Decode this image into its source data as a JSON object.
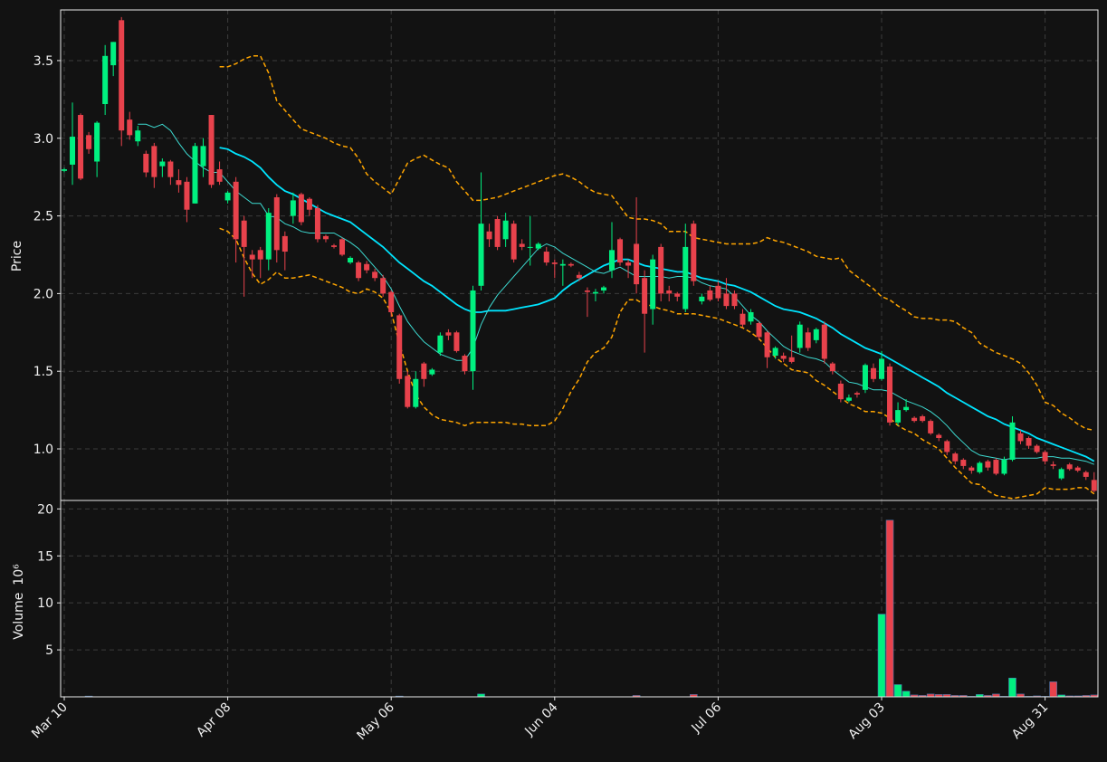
{
  "chart_data": {
    "type": "candlestick",
    "ylabel": "Price",
    "volume_label": "Volume",
    "volume_scale_label": "10⁶",
    "up_color": "#00f080",
    "down_color": "#e8424c",
    "grid": true,
    "categories": [
      "Mar 10",
      null,
      null,
      null,
      null,
      null,
      null,
      null,
      null,
      null,
      null,
      null,
      null,
      null,
      null,
      null,
      null,
      null,
      null,
      null,
      "Apr 08",
      null,
      null,
      null,
      null,
      null,
      null,
      null,
      null,
      null,
      null,
      null,
      null,
      null,
      null,
      null,
      null,
      null,
      null,
      null,
      "May 06",
      null,
      null,
      null,
      null,
      null,
      null,
      null,
      null,
      null,
      null,
      null,
      null,
      null,
      null,
      null,
      null,
      null,
      null,
      null,
      "Jun 04",
      null,
      null,
      null,
      null,
      null,
      null,
      null,
      null,
      null,
      null,
      null,
      null,
      null,
      null,
      null,
      null,
      null,
      null,
      null,
      "Jul 06",
      null,
      null,
      null,
      null,
      null,
      null,
      null,
      null,
      null,
      null,
      null,
      null,
      null,
      null,
      null,
      null,
      null,
      null,
      null,
      "Aug 03",
      null,
      null,
      null,
      null,
      null,
      null,
      null,
      null,
      null,
      null,
      null,
      null,
      null,
      null,
      null,
      null,
      null,
      null,
      null,
      "Aug 31",
      null,
      null,
      null,
      null,
      null,
      null
    ],
    "open": [
      2.79,
      2.83,
      3.15,
      3.02,
      2.85,
      3.22,
      3.47,
      3.76,
      3.12,
      2.98,
      2.9,
      2.95,
      2.82,
      2.85,
      2.73,
      2.72,
      2.58,
      2.82,
      3.15,
      2.8,
      2.6,
      2.72,
      2.47,
      2.25,
      2.28,
      2.22,
      2.62,
      2.37,
      2.5,
      2.64,
      2.61,
      2.55,
      2.37,
      2.31,
      2.35,
      2.2,
      2.2,
      2.19,
      2.14,
      2.1,
      2.01,
      1.86,
      1.47,
      1.27,
      1.55,
      1.48,
      1.62,
      1.75,
      1.75,
      1.6,
      1.5,
      2.05,
      2.4,
      2.48,
      2.35,
      2.45,
      2.32,
      2.3,
      2.29,
      2.27,
      2.2,
      2.18,
      2.19,
      2.12,
      2.02,
      2.0,
      2.02,
      2.15,
      2.35,
      2.2,
      2.32,
      2.1,
      1.9,
      2.3,
      2.02,
      2.0,
      1.9,
      2.45,
      1.95,
      2.02,
      2.05,
      2.0,
      2.0,
      1.87,
      1.82,
      1.81,
      1.75,
      1.6,
      1.6,
      1.59,
      1.65,
      1.75,
      1.7,
      1.8,
      1.55,
      1.42,
      1.31,
      1.36,
      1.38,
      1.52,
      1.45,
      1.53,
      1.17,
      1.25,
      1.2,
      1.21,
      1.18,
      1.09,
      1.05,
      0.97,
      0.93,
      0.88,
      0.85,
      0.92,
      0.93,
      0.84,
      0.93,
      1.1,
      1.07,
      1.02,
      0.98,
      0.9,
      0.81,
      0.9,
      0.88,
      0.85,
      0.8
    ],
    "high": [
      2.81,
      3.23,
      3.16,
      3.04,
      3.11,
      3.6,
      3.62,
      3.78,
      3.17,
      3.08,
      2.92,
      2.97,
      2.87,
      2.86,
      2.8,
      2.75,
      2.97,
      3.0,
      3.15,
      2.85,
      2.66,
      2.75,
      2.5,
      2.28,
      2.3,
      2.55,
      2.64,
      2.4,
      2.65,
      2.65,
      2.62,
      2.57,
      2.38,
      2.32,
      2.36,
      2.24,
      2.21,
      2.21,
      2.16,
      2.12,
      2.02,
      1.87,
      1.5,
      1.5,
      1.56,
      1.52,
      1.75,
      1.77,
      1.76,
      1.61,
      2.05,
      2.78,
      2.45,
      2.5,
      2.52,
      2.47,
      2.35,
      2.5,
      2.33,
      2.3,
      2.22,
      2.22,
      2.2,
      2.14,
      2.04,
      2.03,
      2.05,
      2.46,
      2.36,
      2.22,
      2.62,
      2.15,
      2.25,
      2.32,
      2.05,
      2.01,
      2.45,
      2.47,
      2.0,
      2.05,
      2.08,
      2.1,
      2.02,
      1.9,
      1.9,
      1.82,
      1.76,
      1.66,
      1.62,
      1.73,
      1.82,
      1.78,
      1.78,
      1.82,
      1.56,
      1.44,
      1.35,
      1.37,
      1.55,
      1.55,
      1.63,
      1.55,
      1.3,
      1.32,
      1.21,
      1.22,
      1.19,
      1.1,
      1.06,
      0.98,
      0.94,
      0.89,
      0.92,
      0.93,
      0.94,
      0.95,
      1.21,
      1.12,
      1.08,
      1.03,
      0.99,
      0.92,
      0.88,
      0.91,
      0.89,
      0.86,
      0.85
    ],
    "low": [
      2.78,
      2.7,
      2.73,
      2.9,
      2.75,
      3.15,
      3.4,
      2.95,
      2.99,
      2.95,
      2.75,
      2.68,
      2.75,
      2.7,
      2.65,
      2.46,
      2.58,
      2.75,
      2.68,
      2.7,
      2.58,
      2.2,
      1.98,
      2.1,
      2.1,
      2.15,
      2.2,
      2.15,
      2.45,
      2.44,
      2.5,
      2.33,
      2.33,
      2.29,
      2.24,
      2.19,
      2.08,
      2.13,
      2.08,
      1.98,
      1.85,
      1.42,
      1.26,
      1.26,
      1.4,
      1.47,
      1.6,
      1.7,
      1.62,
      1.48,
      1.38,
      2.02,
      2.3,
      2.28,
      2.3,
      2.2,
      2.28,
      2.18,
      2.28,
      2.18,
      2.1,
      2.05,
      2.17,
      2.08,
      1.85,
      1.95,
      2.0,
      2.1,
      2.18,
      2.1,
      2.0,
      1.62,
      1.8,
      1.95,
      1.95,
      1.95,
      1.88,
      2.05,
      1.93,
      1.95,
      1.95,
      1.9,
      1.9,
      1.78,
      1.8,
      1.7,
      1.52,
      1.58,
      1.56,
      1.55,
      1.62,
      1.63,
      1.68,
      1.55,
      1.48,
      1.3,
      1.3,
      1.33,
      1.36,
      1.43,
      1.44,
      1.15,
      1.15,
      1.24,
      1.17,
      1.17,
      1.09,
      1.05,
      0.96,
      0.9,
      0.87,
      0.84,
      0.84,
      0.86,
      0.83,
      0.83,
      0.92,
      1.03,
      1.0,
      0.97,
      0.9,
      0.87,
      0.8,
      0.86,
      0.85,
      0.8,
      0.72
    ],
    "close": [
      2.8,
      3.01,
      2.74,
      2.93,
      3.1,
      3.53,
      3.62,
      3.05,
      3.02,
      3.05,
      2.78,
      2.75,
      2.85,
      2.75,
      2.7,
      2.54,
      2.95,
      2.95,
      2.7,
      2.72,
      2.65,
      2.35,
      2.3,
      2.22,
      2.22,
      2.52,
      2.28,
      2.27,
      2.6,
      2.46,
      2.54,
      2.35,
      2.35,
      2.3,
      2.25,
      2.23,
      2.1,
      2.15,
      2.1,
      2.0,
      1.88,
      1.45,
      1.27,
      1.45,
      1.45,
      1.51,
      1.73,
      1.73,
      1.63,
      1.5,
      2.02,
      2.45,
      2.35,
      2.3,
      2.47,
      2.22,
      2.3,
      2.3,
      2.32,
      2.2,
      2.19,
      2.19,
      2.18,
      2.1,
      2.01,
      2.01,
      2.04,
      2.28,
      2.2,
      2.18,
      2.06,
      1.87,
      2.22,
      2.0,
      2.0,
      1.98,
      2.3,
      2.08,
      1.98,
      1.96,
      1.97,
      1.92,
      1.92,
      1.8,
      1.88,
      1.72,
      1.59,
      1.65,
      1.58,
      1.56,
      1.8,
      1.65,
      1.77,
      1.58,
      1.5,
      1.32,
      1.33,
      1.35,
      1.54,
      1.45,
      1.58,
      1.17,
      1.25,
      1.27,
      1.18,
      1.18,
      1.1,
      1.07,
      0.98,
      0.92,
      0.89,
      0.86,
      0.91,
      0.88,
      0.84,
      0.93,
      1.17,
      1.05,
      1.02,
      0.98,
      0.92,
      0.89,
      0.87,
      0.87,
      0.86,
      0.82,
      0.73
    ],
    "volume": [
      0.02,
      0.02,
      0.02,
      0.08,
      0.02,
      0.02,
      0.02,
      0.02,
      0.02,
      0.02,
      0.02,
      0.02,
      0.02,
      0.02,
      0.02,
      0.02,
      0.02,
      0.02,
      0.02,
      0.02,
      0.02,
      0.02,
      0.02,
      0.02,
      0.02,
      0.02,
      0.02,
      0.02,
      0.02,
      0.02,
      0.02,
      0.02,
      0.02,
      0.02,
      0.02,
      0.02,
      0.02,
      0.02,
      0.02,
      0.02,
      0.02,
      0.08,
      0.02,
      0.02,
      0.02,
      0.02,
      0.02,
      0.02,
      0.02,
      0.02,
      0.02,
      0.3,
      0.02,
      0.02,
      0.02,
      0.02,
      0.02,
      0.02,
      0.02,
      0.02,
      0.02,
      0.02,
      0.02,
      0.02,
      0.02,
      0.02,
      0.02,
      0.02,
      0.02,
      0.02,
      0.15,
      0.02,
      0.02,
      0.02,
      0.02,
      0.02,
      0.02,
      0.25,
      0.02,
      0.02,
      0.02,
      0.02,
      0.02,
      0.02,
      0.02,
      0.02,
      0.02,
      0.02,
      0.02,
      0.02,
      0.02,
      0.02,
      0.02,
      0.02,
      0.02,
      0.02,
      0.02,
      0.02,
      0.02,
      0.02,
      8.8,
      18.8,
      1.3,
      0.6,
      0.2,
      0.15,
      0.3,
      0.25,
      0.25,
      0.15,
      0.15,
      0.05,
      0.25,
      0.15,
      0.3,
      0.05,
      2.0,
      0.3,
      0.05,
      0.1,
      0.05,
      1.6,
      0.2,
      0.1,
      0.1,
      0.15,
      0.2
    ],
    "overlays": [
      {
        "color": "#00e5ff",
        "width": 1.8,
        "dash": false,
        "values": [
          null,
          null,
          null,
          null,
          null,
          null,
          null,
          null,
          null,
          null,
          null,
          null,
          null,
          null,
          null,
          null,
          null,
          null,
          null,
          2.94,
          2.93,
          2.9,
          2.88,
          2.85,
          2.81,
          2.75,
          2.7,
          2.66,
          2.64,
          2.61,
          2.58,
          2.55,
          2.52,
          2.5,
          2.48,
          2.46,
          2.42,
          2.38,
          2.34,
          2.3,
          2.25,
          2.2,
          2.16,
          2.12,
          2.08,
          2.05,
          2.01,
          1.97,
          1.93,
          1.9,
          1.88,
          1.88,
          1.89,
          1.89,
          1.89,
          1.9,
          1.91,
          1.92,
          1.93,
          1.95,
          1.97,
          2.02,
          2.06,
          2.09,
          2.12,
          2.15,
          2.18,
          2.2,
          2.22,
          2.22,
          2.2,
          2.18,
          2.17,
          2.16,
          2.15,
          2.14,
          2.14,
          2.12,
          2.1,
          2.09,
          2.08,
          2.06,
          2.05,
          2.03,
          2.01,
          1.98,
          1.95,
          1.92,
          1.9,
          1.89,
          1.88,
          1.86,
          1.84,
          1.81,
          1.78,
          1.74,
          1.71,
          1.68,
          1.65,
          1.63,
          1.61,
          1.58,
          1.55,
          1.52,
          1.49,
          1.46,
          1.43,
          1.4,
          1.36,
          1.33,
          1.3,
          1.27,
          1.24,
          1.21,
          1.19,
          1.16,
          1.14,
          1.12,
          1.1,
          1.07,
          1.05,
          1.03,
          1.01,
          0.99,
          0.97,
          0.95,
          0.92
        ]
      },
      {
        "color": "#3dd9d0",
        "width": 1,
        "dash": false,
        "values": [
          null,
          null,
          null,
          null,
          null,
          null,
          null,
          null,
          null,
          3.09,
          3.09,
          3.07,
          3.09,
          3.05,
          2.97,
          2.9,
          2.85,
          2.81,
          2.78,
          2.78,
          2.72,
          2.66,
          2.62,
          2.58,
          2.58,
          2.5,
          2.49,
          2.45,
          2.43,
          2.4,
          2.39,
          2.39,
          2.39,
          2.39,
          2.36,
          2.33,
          2.29,
          2.23,
          2.17,
          2.11,
          2.03,
          1.92,
          1.82,
          1.75,
          1.69,
          1.65,
          1.61,
          1.59,
          1.57,
          1.57,
          1.65,
          1.8,
          1.91,
          1.99,
          2.05,
          2.11,
          2.17,
          2.23,
          2.29,
          2.32,
          2.3,
          2.26,
          2.23,
          2.2,
          2.17,
          2.14,
          2.13,
          2.15,
          2.17,
          2.14,
          2.11,
          2.11,
          2.11,
          2.11,
          2.1,
          2.11,
          2.11,
          2.1,
          2.07,
          2.05,
          2.04,
          2.03,
          1.98,
          1.92,
          1.86,
          1.82,
          1.76,
          1.71,
          1.66,
          1.63,
          1.61,
          1.59,
          1.58,
          1.56,
          1.51,
          1.47,
          1.43,
          1.42,
          1.4,
          1.38,
          1.38,
          1.37,
          1.34,
          1.31,
          1.29,
          1.27,
          1.24,
          1.2,
          1.15,
          1.09,
          1.04,
          0.99,
          0.96,
          0.95,
          0.94,
          0.93,
          0.94,
          0.94,
          0.94,
          0.94,
          0.95,
          0.95,
          0.94,
          0.94,
          0.93,
          0.92,
          0.9
        ]
      },
      {
        "color": "#ffa500",
        "width": 1.5,
        "dash": true,
        "values": [
          null,
          null,
          null,
          null,
          null,
          null,
          null,
          null,
          null,
          null,
          null,
          null,
          null,
          null,
          null,
          null,
          null,
          null,
          null,
          3.46,
          3.46,
          3.48,
          3.51,
          3.53,
          3.53,
          3.42,
          3.24,
          3.18,
          3.12,
          3.06,
          3.04,
          3.02,
          3.0,
          2.97,
          2.95,
          2.94,
          2.87,
          2.77,
          2.72,
          2.68,
          2.64,
          2.74,
          2.84,
          2.87,
          2.89,
          2.86,
          2.83,
          2.81,
          2.72,
          2.66,
          2.6,
          2.6,
          2.61,
          2.62,
          2.64,
          2.66,
          2.68,
          2.7,
          2.72,
          2.74,
          2.76,
          2.77,
          2.75,
          2.72,
          2.68,
          2.65,
          2.64,
          2.63,
          2.56,
          2.49,
          2.48,
          2.48,
          2.47,
          2.45,
          2.4,
          2.4,
          2.4,
          2.36,
          2.35,
          2.34,
          2.33,
          2.32,
          2.32,
          2.32,
          2.32,
          2.33,
          2.36,
          2.34,
          2.33,
          2.31,
          2.29,
          2.27,
          2.24,
          2.23,
          2.22,
          2.23,
          2.15,
          2.11,
          2.07,
          2.03,
          1.98,
          1.96,
          1.92,
          1.89,
          1.85,
          1.84,
          1.84,
          1.83,
          1.83,
          1.82,
          1.78,
          1.75,
          1.68,
          1.65,
          1.62,
          1.6,
          1.58,
          1.55,
          1.49,
          1.41,
          1.3,
          1.28,
          1.23,
          1.2,
          1.16,
          1.13,
          1.12
        ]
      },
      {
        "color": "#ffa500",
        "width": 1.5,
        "dash": true,
        "values": [
          null,
          null,
          null,
          null,
          null,
          null,
          null,
          null,
          null,
          null,
          null,
          null,
          null,
          null,
          null,
          null,
          null,
          null,
          null,
          2.42,
          2.4,
          2.35,
          2.23,
          2.13,
          2.06,
          2.09,
          2.14,
          2.1,
          2.1,
          2.11,
          2.12,
          2.1,
          2.08,
          2.06,
          2.04,
          2.01,
          2.0,
          2.03,
          2.01,
          1.97,
          1.88,
          1.68,
          1.5,
          1.35,
          1.27,
          1.22,
          1.19,
          1.18,
          1.17,
          1.15,
          1.17,
          1.17,
          1.17,
          1.17,
          1.17,
          1.16,
          1.16,
          1.15,
          1.15,
          1.15,
          1.18,
          1.26,
          1.37,
          1.45,
          1.56,
          1.62,
          1.65,
          1.72,
          1.88,
          1.96,
          1.96,
          1.93,
          1.92,
          1.9,
          1.89,
          1.87,
          1.87,
          1.87,
          1.86,
          1.85,
          1.84,
          1.82,
          1.8,
          1.78,
          1.75,
          1.71,
          1.65,
          1.59,
          1.55,
          1.51,
          1.5,
          1.49,
          1.44,
          1.41,
          1.37,
          1.33,
          1.29,
          1.27,
          1.24,
          1.24,
          1.23,
          1.2,
          1.15,
          1.12,
          1.1,
          1.06,
          1.03,
          1.0,
          0.94,
          0.88,
          0.83,
          0.78,
          0.77,
          0.73,
          0.7,
          0.69,
          0.68,
          0.69,
          0.7,
          0.71,
          0.75,
          0.74,
          0.74,
          0.74,
          0.75,
          0.75,
          0.71
        ]
      }
    ],
    "ylim": [
      0.668,
      3.826
    ],
    "yticks": [
      {
        "value": 1.0,
        "label": "1.0"
      },
      1.5,
      {
        "value": 2.0,
        "label": "2.0"
      },
      2.5,
      {
        "value": 3.0,
        "label": "3.0"
      },
      3.5
    ],
    "volume_ylim": [
      0,
      20.9
    ],
    "volume_yticks": [
      5,
      10,
      15,
      20
    ]
  }
}
